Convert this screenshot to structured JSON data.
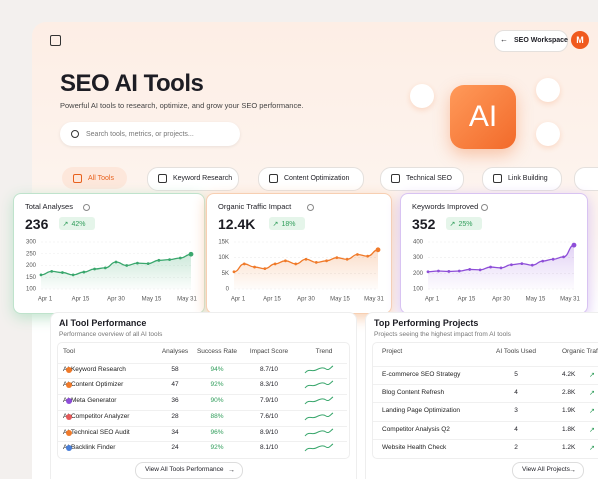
{
  "header": {
    "workspace": "SEO Workspace",
    "avatar": "M"
  },
  "hero": {
    "title": "SEO AI Tools",
    "subtitle": "Powerful AI tools to research, optimize, and grow your SEO performance.",
    "search_placeholder": "Search tools, metrics, or projects...",
    "badge": "AI"
  },
  "tabs": [
    "All Tools",
    "Keyword Research",
    "Content Optimization",
    "Technical SEO",
    "Link Building"
  ],
  "cards": [
    {
      "title": "Total Analyses",
      "value": "236",
      "change": "42%",
      "chart": {
        "type": "line",
        "color": "#3aa76d",
        "ylim": [
          100,
          300
        ],
        "yticks": [
          100,
          150,
          200,
          250,
          300
        ],
        "grid": true,
        "x_labels": [
          "Apr 1",
          "Apr 15",
          "Apr 30",
          "May 15",
          "May 31"
        ],
        "values": [
          160,
          175,
          170,
          160,
          172,
          185,
          190,
          215,
          200,
          210,
          208,
          222,
          225,
          232,
          248
        ]
      }
    },
    {
      "title": "Organic Traffic Impact",
      "value": "12.4K",
      "change": "18%",
      "chart": {
        "type": "line",
        "color": "#f07a2a",
        "ylim": [
          0,
          15000
        ],
        "grid": true,
        "yticks": [
          {
            "value": 0,
            "label": "0"
          },
          {
            "value": 5000,
            "label": "5K"
          },
          {
            "value": 10000,
            "label": "10K"
          },
          {
            "value": 15000,
            "label": "15K"
          }
        ],
        "x_labels": [
          "Apr 1",
          "Apr 15",
          "Apr 30",
          "May 15",
          "May 31"
        ],
        "values": [
          5500,
          8000,
          7000,
          6500,
          8000,
          9000,
          8000,
          9500,
          8500,
          9000,
          10000,
          9500,
          11000,
          10500,
          12500
        ]
      }
    },
    {
      "title": "Keywords Improved",
      "value": "352",
      "change": "25%",
      "chart": {
        "type": "line",
        "color": "#8e4ed8",
        "ylim": [
          100,
          400
        ],
        "yticks": [
          100,
          200,
          300,
          400
        ],
        "grid": true,
        "x_labels": [
          "Apr 1",
          "Apr 15",
          "Apr 30",
          "May 15",
          "May 31"
        ],
        "values": [
          210,
          215,
          212,
          215,
          225,
          222,
          240,
          235,
          255,
          262,
          252,
          278,
          290,
          305,
          380
        ]
      }
    }
  ],
  "tool_performance": {
    "title": "AI Tool Performance",
    "subtitle": "Performance overview of all AI tools",
    "columns": [
      "Tool",
      "Analyses",
      "Success Rate",
      "Impact Score",
      "Trend"
    ],
    "rows": [
      [
        "AI Keyword Research",
        "58",
        "94%",
        "8.7/10"
      ],
      [
        "AI Content Optimizer",
        "47",
        "92%",
        "8.3/10"
      ],
      [
        "AI Meta Generator",
        "36",
        "90%",
        "7.9/10"
      ],
      [
        "AI Competitor Analyzer",
        "28",
        "88%",
        "7.6/10"
      ],
      [
        "AI Technical SEO Audit",
        "34",
        "96%",
        "8.9/10"
      ],
      [
        "AI Backlink Finder",
        "24",
        "92%",
        "8.1/10"
      ]
    ],
    "button": "View All Tools Performance"
  },
  "projects": {
    "title": "Top Performing Projects",
    "subtitle": "Projects seeing the highest impact from AI tools",
    "columns": [
      "Project",
      "AI Tools Used",
      "Organic Traf"
    ],
    "rows": [
      [
        "E-commerce SEO Strategy",
        "5",
        "4.2K"
      ],
      [
        "Blog Content Refresh",
        "4",
        "2.8K"
      ],
      [
        "Landing Page Optimization",
        "3",
        "1.9K"
      ],
      [
        "Competitor Analysis Q2",
        "4",
        "1.8K"
      ],
      [
        "Website Health Check",
        "2",
        "1.2K"
      ]
    ],
    "button": "View All Projects"
  }
}
